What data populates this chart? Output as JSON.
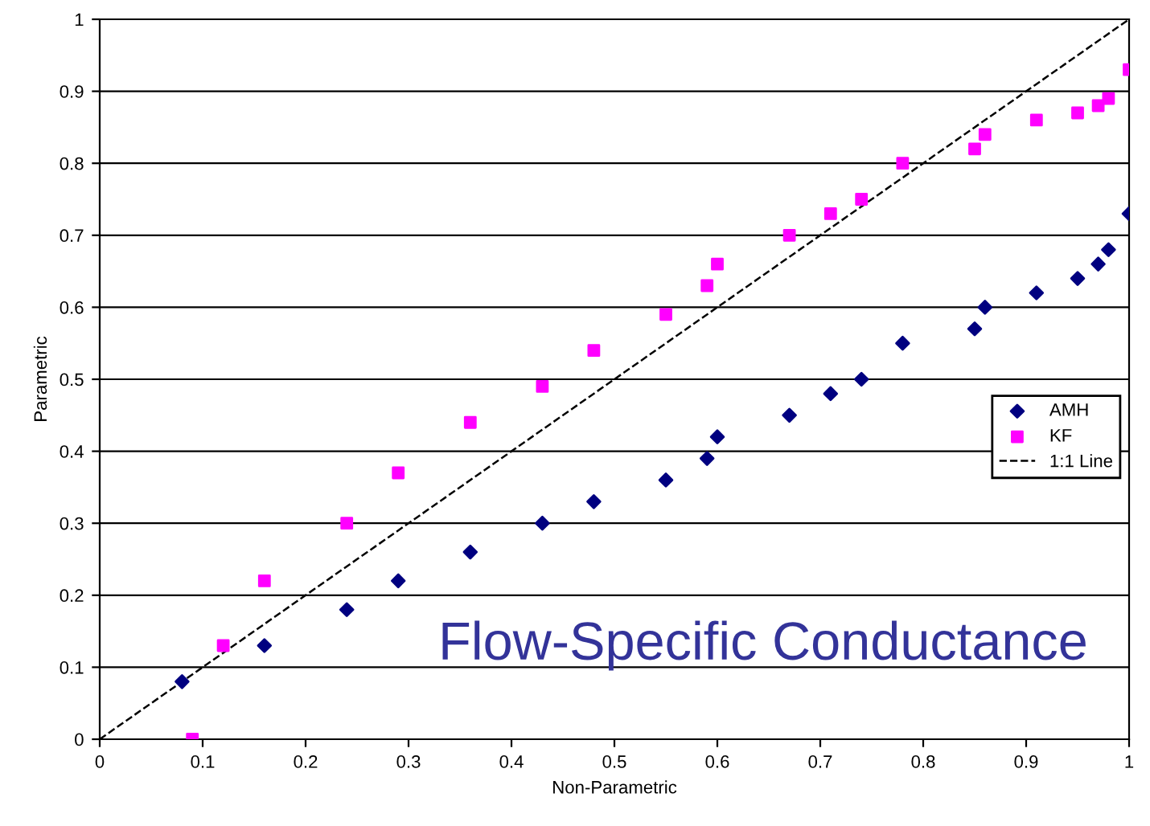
{
  "chart_data": {
    "type": "scatter",
    "xlabel": "Non-Parametric",
    "ylabel": "Parametric",
    "annotations": [
      "Flow-Specific Conductance"
    ],
    "series": [
      {
        "name": "AMH",
        "color": "#000080",
        "marker": "diamond",
        "x": [
          0.08,
          0.16,
          0.24,
          0.29,
          0.36,
          0.43,
          0.48,
          0.55,
          0.59,
          0.6,
          0.67,
          0.71,
          0.74,
          0.78,
          0.85,
          0.86,
          0.91,
          0.95,
          0.97,
          0.98,
          1.0
        ],
        "values": [
          0.08,
          0.13,
          0.18,
          0.22,
          0.26,
          0.3,
          0.33,
          0.36,
          0.39,
          0.42,
          0.45,
          0.48,
          0.5,
          0.55,
          0.57,
          0.6,
          0.62,
          0.64,
          0.66,
          0.68,
          0.73
        ]
      },
      {
        "name": "KF",
        "color": "#ff00ff",
        "marker": "square",
        "x": [
          0.09,
          0.12,
          0.16,
          0.24,
          0.29,
          0.36,
          0.43,
          0.48,
          0.55,
          0.59,
          0.6,
          0.67,
          0.71,
          0.74,
          0.78,
          0.85,
          0.86,
          0.91,
          0.95,
          0.97,
          0.98,
          1.0
        ],
        "values": [
          0.0,
          0.13,
          0.22,
          0.3,
          0.37,
          0.44,
          0.49,
          0.54,
          0.59,
          0.63,
          0.66,
          0.7,
          0.73,
          0.75,
          0.8,
          0.82,
          0.84,
          0.86,
          0.87,
          0.88,
          0.89,
          0.93
        ]
      },
      {
        "name": "1:1 Line",
        "type": "line",
        "color": "#000000",
        "line_style": "dashed",
        "marker": "none",
        "x": [
          0,
          1
        ],
        "values": [
          0,
          1
        ]
      }
    ],
    "xlim": [
      0,
      1
    ],
    "ylim": [
      0,
      1
    ],
    "xticks": [
      0,
      0.1,
      0.2,
      0.3,
      0.4,
      0.5,
      0.6,
      0.7,
      0.8,
      0.9,
      1
    ],
    "yticks": [
      0,
      0.1,
      0.2,
      0.3,
      0.4,
      0.5,
      0.6,
      0.7,
      0.8,
      0.9,
      1
    ],
    "grid": "y",
    "legend": "right"
  }
}
